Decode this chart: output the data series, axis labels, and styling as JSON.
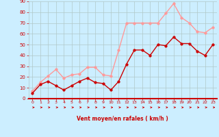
{
  "hours": [
    0,
    1,
    2,
    3,
    4,
    5,
    6,
    7,
    8,
    9,
    10,
    11,
    12,
    13,
    14,
    15,
    16,
    17,
    18,
    19,
    20,
    21,
    22,
    23
  ],
  "wind_avg": [
    5,
    13,
    16,
    12,
    8,
    12,
    16,
    19,
    15,
    14,
    8,
    16,
    32,
    45,
    45,
    40,
    50,
    49,
    57,
    51,
    51,
    44,
    40,
    50
  ],
  "wind_gust": [
    7,
    15,
    21,
    27,
    19,
    22,
    23,
    29,
    29,
    22,
    21,
    45,
    70,
    70,
    70,
    70,
    70,
    79,
    88,
    75,
    70,
    62,
    61,
    66
  ],
  "bg_color": "#cceeff",
  "grid_color": "#b0c8c8",
  "avg_color": "#cc0000",
  "gust_color": "#ff9999",
  "xlabel": "Vent moyen/en rafales ( km/h )",
  "xlabel_color": "#cc0000",
  "tick_color": "#cc0000",
  "ylim": [
    0,
    90
  ],
  "yticks": [
    0,
    10,
    20,
    30,
    40,
    50,
    60,
    70,
    80,
    90
  ],
  "marker_size": 2.5,
  "line_width": 1.0
}
